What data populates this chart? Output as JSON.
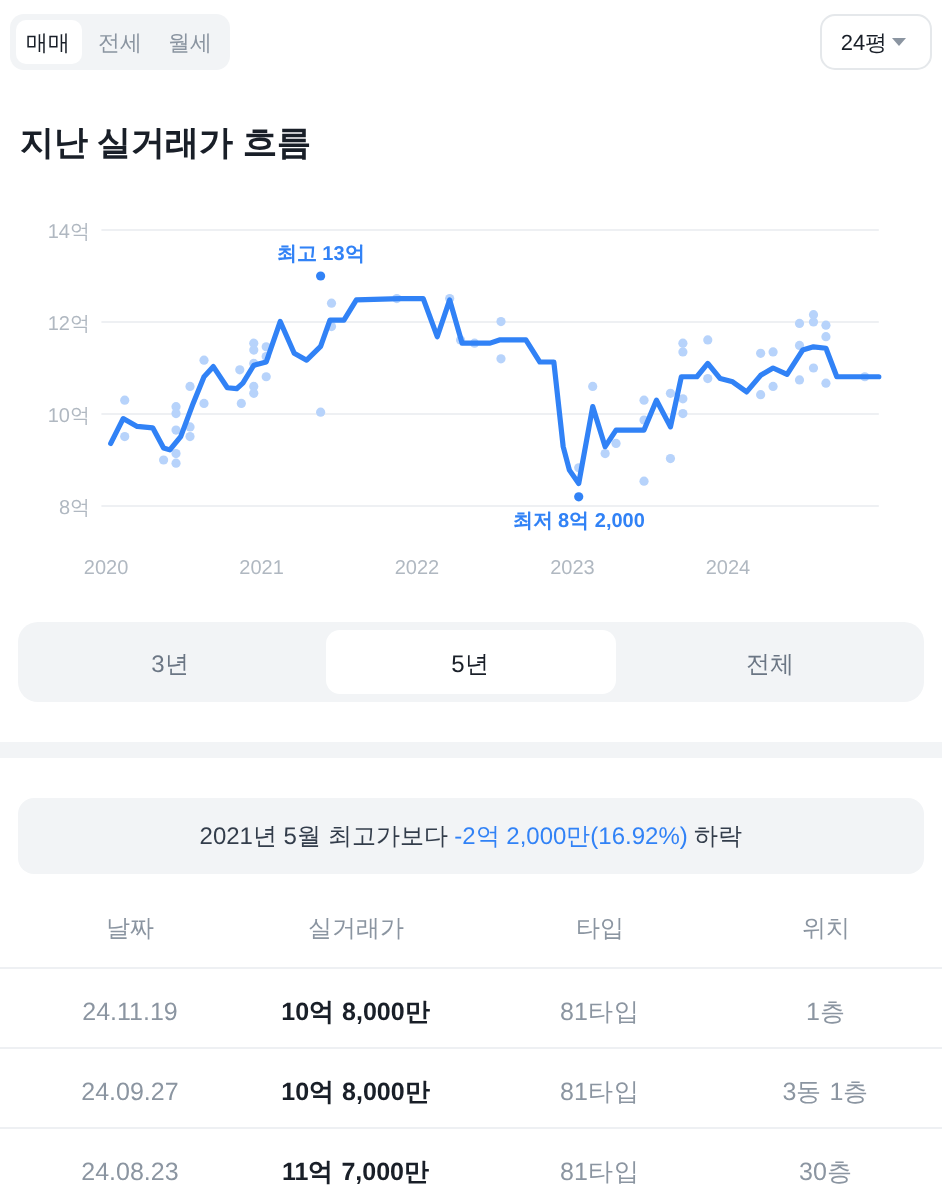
{
  "chart_data": [
    {
      "type": "line",
      "title": "지난 실거래가 흐름",
      "xlim": [
        2019.97,
        2024.97
      ],
      "xticks": [
        2020,
        2021,
        2022,
        2023,
        2024
      ],
      "ylim": [
        8,
        14
      ],
      "yticks": [
        {
          "value": 8,
          "label": "8억"
        },
        {
          "value": 10,
          "label": "10억"
        },
        {
          "value": 12,
          "label": "12억"
        },
        {
          "value": 14,
          "label": "14억"
        }
      ],
      "grid": "y",
      "marker": "none",
      "line_style": "solid",
      "series": [
        {
          "type": "scatter",
          "color": "#b7d3fb",
          "marker": "circle",
          "x": [
            2020.12,
            2020.12,
            2020.37,
            2020.45,
            2020.45,
            2020.45,
            2020.45,
            2020.45,
            2020.54,
            2020.54,
            2020.54,
            2020.63,
            2020.63,
            2020.86,
            2020.87,
            2020.95,
            2020.95,
            2020.95,
            2020.95,
            2020.95,
            2021.03,
            2021.03,
            2021.03,
            2021.38,
            2021.45,
            2021.45,
            2021.87,
            2022.21,
            2022.28,
            2022.37,
            2022.54,
            2022.54,
            2023.04,
            2023.13,
            2023.21,
            2023.28,
            2023.46,
            2023.46,
            2023.46,
            2023.63,
            2023.63,
            2023.71,
            2023.71,
            2023.71,
            2023.71,
            2023.87,
            2023.87,
            2024.21,
            2024.21,
            2024.29,
            2024.29,
            2024.46,
            2024.46,
            2024.46,
            2024.55,
            2024.55,
            2024.55,
            2024.63,
            2024.63,
            2024.63,
            2024.88
          ],
          "values": [
            10.3,
            9.51,
            9.0,
            10.16,
            10.01,
            9.65,
            9.14,
            8.93,
            10.6,
            9.72,
            9.51,
            11.17,
            10.23,
            10.96,
            10.23,
            11.54,
            11.39,
            11.1,
            10.6,
            10.45,
            11.46,
            11.25,
            10.81,
            10.04,
            12.41,
            11.9,
            12.51,
            12.51,
            11.61,
            11.54,
            12.01,
            11.2,
            8.83,
            10.6,
            9.14,
            9.36,
            10.3,
            9.87,
            8.54,
            10.45,
            9.03,
            11.54,
            11.35,
            10.33,
            10.01,
            11.61,
            10.77,
            11.32,
            10.42,
            11.35,
            10.6,
            11.97,
            11.49,
            10.74,
            12.16,
            12.0,
            11.0,
            11.93,
            11.68,
            10.67,
            10.81
          ]
        },
        {
          "type": "line",
          "color": "#3182f6",
          "x": [
            2020.03,
            2020.11,
            2020.2,
            2020.3,
            2020.37,
            2020.41,
            2020.48,
            2020.56,
            2020.63,
            2020.69,
            2020.78,
            2020.84,
            2020.88,
            2020.95,
            2021.03,
            2021.12,
            2021.21,
            2021.29,
            2021.38,
            2021.44,
            2021.53,
            2021.61,
            2021.89,
            2022.04,
            2022.13,
            2022.21,
            2022.29,
            2022.41,
            2022.47,
            2022.53,
            2022.7,
            2022.79,
            2022.88,
            2022.94,
            2022.98,
            2023.04,
            2023.13,
            2023.21,
            2023.28,
            2023.46,
            2023.54,
            2023.63,
            2023.7,
            2023.8,
            2023.87,
            2023.95,
            2024.03,
            2024.12,
            2024.21,
            2024.29,
            2024.38,
            2024.48,
            2024.55,
            2024.63,
            2024.7,
            2024.97
          ],
          "values": [
            9.36,
            9.9,
            9.73,
            9.7,
            9.26,
            9.22,
            9.51,
            10.23,
            10.81,
            11.03,
            10.57,
            10.55,
            10.67,
            11.06,
            11.13,
            12.01,
            11.32,
            11.17,
            11.47,
            12.04,
            12.04,
            12.48,
            12.51,
            12.51,
            11.68,
            12.48,
            11.54,
            11.54,
            11.54,
            11.61,
            11.61,
            11.13,
            11.13,
            9.29,
            8.78,
            8.49,
            10.16,
            9.29,
            9.65,
            9.65,
            10.3,
            9.72,
            10.81,
            10.81,
            11.1,
            10.77,
            10.7,
            10.48,
            10.84,
            11.0,
            10.86,
            11.39,
            11.46,
            11.43,
            10.81,
            10.81
          ]
        },
        {
          "type": "scatter",
          "color": "#3182f6",
          "marker": "circle",
          "x": [
            2021.38,
            2023.04
          ],
          "values": [
            13,
            8.2
          ]
        }
      ],
      "annotations": [
        {
          "text": "최고 13억",
          "x": 2021.38,
          "y": 13
        },
        {
          "text": "최저 8억 2,000",
          "x": 2023.04,
          "y": 8.2
        }
      ]
    },
    {
      "type": "other",
      "annotations": [
        "매매",
        "전세",
        "월세",
        "24평",
        "3년",
        "5년",
        "전체",
        "2021년 5월 최고가보다 ",
        "-2억 2,000만(16.92%)",
        " 하락",
        "날짜",
        "실거래가",
        "타입",
        "위치",
        "24.11.19",
        "10억 8,000만",
        "81타입",
        "1층",
        "24.09.27",
        "10억 8,000만",
        "81타입",
        "3동 1층",
        "24.08.23",
        "11억 7,000만",
        "81타입",
        "30층"
      ]
    }
  ]
}
